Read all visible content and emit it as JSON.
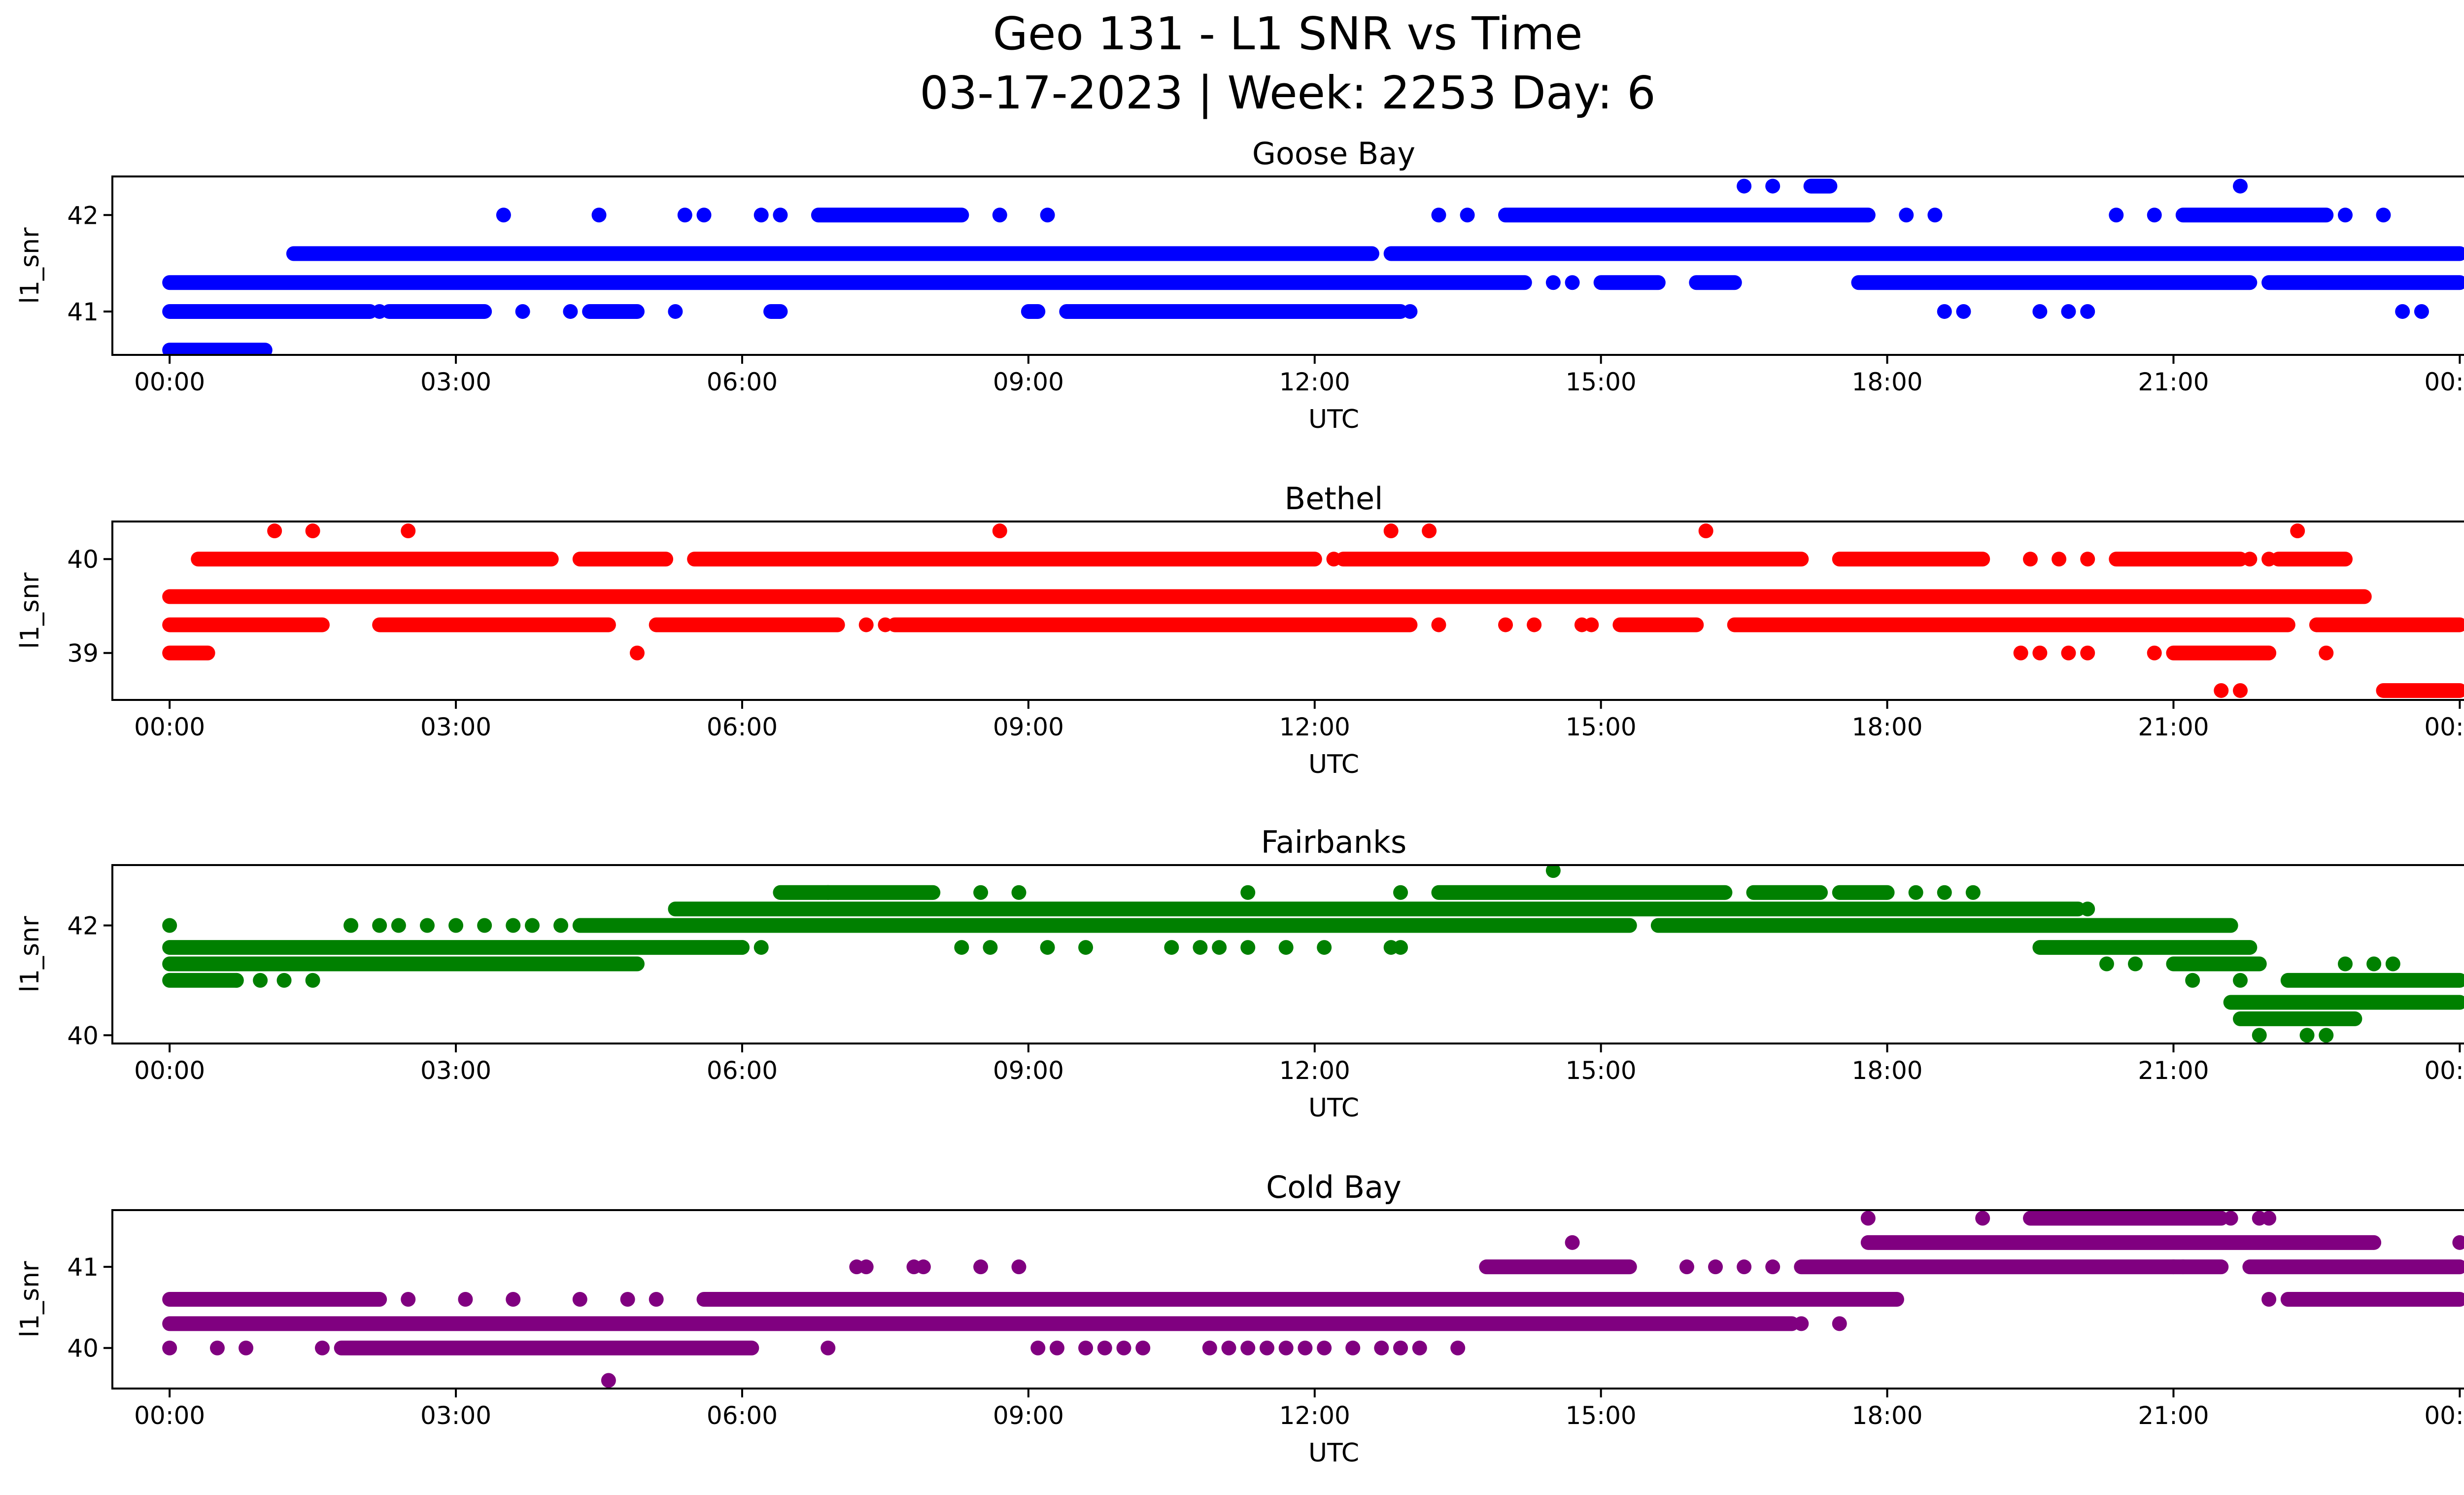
{
  "figure": {
    "title_line1": "Geo 131 - L1 SNR vs Time",
    "title_line2": "03-17-2023 | Week: 2253 Day: 6"
  },
  "chart_data": [
    {
      "type": "scatter",
      "title": "Goose Bay",
      "xlabel": "UTC",
      "ylabel": "l1_snr",
      "color": "#0000ff",
      "xlim": [
        -0.6,
        25.0
      ],
      "ylim": [
        40.55,
        42.4
      ],
      "xticks": [
        "00:00",
        "03:00",
        "06:00",
        "09:00",
        "12:00",
        "15:00",
        "18:00",
        "21:00",
        "00:00"
      ],
      "yticks": [
        41,
        42
      ],
      "bands": [
        {
          "y": 40.6,
          "segs": [
            [
              0.0,
              1.0
            ]
          ]
        },
        {
          "y": 41.0,
          "segs": [
            [
              0.0,
              2.1
            ],
            [
              2.3,
              2.6
            ],
            [
              2.6,
              3.3
            ],
            [
              4.4,
              4.9
            ],
            [
              6.3,
              6.4
            ],
            [
              9.0,
              9.1
            ],
            [
              9.4,
              12.9
            ]
          ]
        },
        {
          "y": 41.3,
          "segs": [
            [
              0.0,
              14.2
            ],
            [
              15.0,
              15.6
            ],
            [
              16.0,
              16.4
            ],
            [
              17.7,
              21.8
            ],
            [
              22.0,
              24.0
            ]
          ]
        },
        {
          "y": 41.6,
          "segs": [
            [
              1.3,
              12.6
            ],
            [
              12.8,
              24.0
            ]
          ]
        },
        {
          "y": 42.0,
          "segs": [
            [
              6.8,
              8.3
            ],
            [
              14.0,
              17.8
            ],
            [
              21.1,
              22.6
            ]
          ]
        },
        {
          "y": 42.3,
          "segs": [
            [
              17.2,
              17.4
            ]
          ]
        }
      ],
      "points": [
        [
          3.5,
          42.0
        ],
        [
          4.5,
          42.0
        ],
        [
          5.4,
          42.0
        ],
        [
          5.6,
          42.0
        ],
        [
          6.2,
          42.0
        ],
        [
          6.4,
          42.0
        ],
        [
          8.7,
          42.0
        ],
        [
          9.2,
          42.0
        ],
        [
          13.3,
          42.0
        ],
        [
          13.6,
          42.0
        ],
        [
          18.2,
          42.0
        ],
        [
          18.5,
          42.0
        ],
        [
          20.4,
          42.0
        ],
        [
          20.8,
          42.0
        ],
        [
          22.8,
          42.0
        ],
        [
          23.2,
          42.0
        ],
        [
          16.5,
          42.3
        ],
        [
          16.8,
          42.3
        ],
        [
          21.7,
          42.3
        ],
        [
          2.2,
          41.0
        ],
        [
          3.7,
          41.0
        ],
        [
          4.2,
          41.0
        ],
        [
          5.3,
          41.0
        ],
        [
          13.0,
          41.0
        ],
        [
          18.6,
          41.0
        ],
        [
          18.8,
          41.0
        ],
        [
          19.6,
          41.0
        ],
        [
          19.9,
          41.0
        ],
        [
          20.1,
          41.0
        ],
        [
          23.4,
          41.0
        ],
        [
          23.6,
          41.0
        ],
        [
          14.5,
          41.3
        ],
        [
          14.7,
          41.3
        ]
      ]
    },
    {
      "type": "scatter",
      "title": "Bethel",
      "xlabel": "UTC",
      "ylabel": "l1_snr",
      "color": "#ff0000",
      "xlim": [
        -0.6,
        25.0
      ],
      "ylim": [
        38.5,
        40.4
      ],
      "xticks": [
        "00:00",
        "03:00",
        "06:00",
        "09:00",
        "12:00",
        "15:00",
        "18:00",
        "21:00",
        "00:00"
      ],
      "yticks": [
        39,
        40
      ],
      "bands": [
        {
          "y": 38.6,
          "segs": [
            [
              23.2,
              24.0
            ]
          ]
        },
        {
          "y": 39.0,
          "segs": [
            [
              0.0,
              0.4
            ],
            [
              21.0,
              22.0
            ]
          ]
        },
        {
          "y": 39.3,
          "segs": [
            [
              0.0,
              1.6
            ],
            [
              2.2,
              4.6
            ],
            [
              5.1,
              7.0
            ],
            [
              7.6,
              13.0
            ],
            [
              15.2,
              16.0
            ],
            [
              16.4,
              22.2
            ],
            [
              22.5,
              24.0
            ]
          ]
        },
        {
          "y": 39.6,
          "segs": [
            [
              0.0,
              23.0
            ]
          ]
        },
        {
          "y": 40.0,
          "segs": [
            [
              0.3,
              4.0
            ],
            [
              4.3,
              5.2
            ],
            [
              5.5,
              12.0
            ],
            [
              12.3,
              17.1
            ],
            [
              17.5,
              19.0
            ],
            [
              20.4,
              21.7
            ],
            [
              22.1,
              22.8
            ]
          ]
        }
      ],
      "points": [
        [
          1.1,
          40.3
        ],
        [
          1.5,
          40.3
        ],
        [
          2.5,
          40.3
        ],
        [
          8.7,
          40.3
        ],
        [
          12.8,
          40.3
        ],
        [
          13.2,
          40.3
        ],
        [
          16.1,
          40.3
        ],
        [
          22.3,
          40.3
        ],
        [
          4.9,
          39.0
        ],
        [
          19.4,
          39.0
        ],
        [
          19.6,
          39.0
        ],
        [
          19.9,
          39.0
        ],
        [
          20.1,
          39.0
        ],
        [
          20.8,
          39.0
        ],
        [
          22.6,
          39.0
        ],
        [
          21.5,
          38.6
        ],
        [
          21.7,
          38.6
        ],
        [
          7.3,
          39.3
        ],
        [
          7.5,
          39.3
        ],
        [
          13.3,
          39.3
        ],
        [
          14.0,
          39.3
        ],
        [
          14.3,
          39.3
        ],
        [
          14.8,
          39.3
        ],
        [
          14.9,
          39.3
        ],
        [
          19.5,
          40.0
        ],
        [
          19.8,
          40.0
        ],
        [
          20.1,
          40.0
        ],
        [
          12.2,
          40.0
        ],
        [
          21.8,
          40.0
        ],
        [
          22.0,
          40.0
        ]
      ]
    },
    {
      "type": "scatter",
      "title": "Fairbanks",
      "xlabel": "UTC",
      "ylabel": "l1_snr",
      "color": "#008000",
      "xlim": [
        -0.6,
        25.0
      ],
      "ylim": [
        39.85,
        43.1
      ],
      "xticks": [
        "00:00",
        "03:00",
        "06:00",
        "09:00",
        "12:00",
        "15:00",
        "18:00",
        "21:00",
        "00:00"
      ],
      "yticks": [
        40,
        42
      ],
      "bands": [
        {
          "y": 40.3,
          "segs": [
            [
              21.7,
              22.9
            ]
          ]
        },
        {
          "y": 40.6,
          "segs": [
            [
              21.6,
              24.0
            ]
          ]
        },
        {
          "y": 41.0,
          "segs": [
            [
              0.0,
              0.7
            ],
            [
              22.2,
              24.0
            ]
          ]
        },
        {
          "y": 41.3,
          "segs": [
            [
              0.0,
              4.9
            ],
            [
              21.0,
              21.9
            ]
          ]
        },
        {
          "y": 41.6,
          "segs": [
            [
              0.0,
              6.0
            ],
            [
              19.6,
              21.8
            ]
          ]
        },
        {
          "y": 42.0,
          "segs": [
            [
              4.3,
              15.3
            ],
            [
              15.6,
              21.6
            ]
          ]
        },
        {
          "y": 42.3,
          "segs": [
            [
              5.3,
              20.0
            ]
          ]
        },
        {
          "y": 42.6,
          "segs": [
            [
              6.4,
              6.9
            ],
            [
              6.9,
              8.0
            ],
            [
              13.3,
              16.3
            ],
            [
              16.6,
              17.3
            ],
            [
              17.5,
              18.0
            ]
          ]
        }
      ],
      "points": [
        [
          0.0,
          42.0
        ],
        [
          0.7,
          41.0
        ],
        [
          0.95,
          41.0
        ],
        [
          1.2,
          41.0
        ],
        [
          1.5,
          41.0
        ],
        [
          1.9,
          42.0
        ],
        [
          2.2,
          42.0
        ],
        [
          2.4,
          42.0
        ],
        [
          2.7,
          42.0
        ],
        [
          3.0,
          42.0
        ],
        [
          3.3,
          42.0
        ],
        [
          3.6,
          42.0
        ],
        [
          3.8,
          42.0
        ],
        [
          4.1,
          42.0
        ],
        [
          6.0,
          41.6
        ],
        [
          6.2,
          41.6
        ],
        [
          8.5,
          42.6
        ],
        [
          8.9,
          42.6
        ],
        [
          11.3,
          42.6
        ],
        [
          12.9,
          42.6
        ],
        [
          14.5,
          43.0
        ],
        [
          18.3,
          42.6
        ],
        [
          18.6,
          42.6
        ],
        [
          18.9,
          42.6
        ],
        [
          20.1,
          42.3
        ],
        [
          8.3,
          41.6
        ],
        [
          8.6,
          41.6
        ],
        [
          9.2,
          41.6
        ],
        [
          9.6,
          41.6
        ],
        [
          10.5,
          41.6
        ],
        [
          10.8,
          41.6
        ],
        [
          11.0,
          41.6
        ],
        [
          11.3,
          41.6
        ],
        [
          11.7,
          41.6
        ],
        [
          12.1,
          41.6
        ],
        [
          12.8,
          41.6
        ],
        [
          12.9,
          41.6
        ],
        [
          21.9,
          40.0
        ],
        [
          22.6,
          40.0
        ],
        [
          22.8,
          41.3
        ],
        [
          23.1,
          41.3
        ],
        [
          23.3,
          41.3
        ],
        [
          22.4,
          40.0
        ],
        [
          21.2,
          41.0
        ],
        [
          21.7,
          41.0
        ],
        [
          20.3,
          41.3
        ],
        [
          20.6,
          41.3
        ]
      ]
    },
    {
      "type": "scatter",
      "title": "Cold Bay",
      "xlabel": "UTC",
      "ylabel": "l1_snr",
      "color": "#800080",
      "xlim": [
        -0.6,
        25.0
      ],
      "ylim": [
        39.5,
        41.7
      ],
      "xticks": [
        "00:00",
        "03:00",
        "06:00",
        "09:00",
        "12:00",
        "15:00",
        "18:00",
        "21:00",
        "00:00"
      ],
      "yticks": [
        40,
        41
      ],
      "bands": [
        {
          "y": 40.0,
          "segs": [
            [
              1.8,
              6.1
            ]
          ]
        },
        {
          "y": 40.3,
          "segs": [
            [
              0.0,
              17.0
            ]
          ]
        },
        {
          "y": 40.6,
          "segs": [
            [
              0.0,
              2.2
            ],
            [
              5.6,
              18.1
            ],
            [
              22.2,
              23.6
            ],
            [
              23.4,
              24.0
            ]
          ]
        },
        {
          "y": 41.0,
          "segs": [
            [
              13.8,
              15.3
            ],
            [
              17.1,
              21.5
            ],
            [
              21.8,
              24.0
            ]
          ]
        },
        {
          "y": 41.3,
          "segs": [
            [
              17.8,
              23.1
            ]
          ]
        },
        {
          "y": 41.6,
          "segs": [
            [
              19.5,
              21.5
            ]
          ]
        }
      ],
      "points": [
        [
          0.0,
          40.0
        ],
        [
          0.5,
          40.0
        ],
        [
          0.8,
          40.0
        ],
        [
          1.6,
          40.0
        ],
        [
          2.5,
          40.6
        ],
        [
          3.1,
          40.6
        ],
        [
          3.6,
          40.6
        ],
        [
          4.3,
          40.6
        ],
        [
          4.8,
          40.6
        ],
        [
          5.1,
          40.6
        ],
        [
          4.6,
          39.6
        ],
        [
          6.9,
          40.0
        ],
        [
          7.2,
          41.0
        ],
        [
          7.3,
          41.0
        ],
        [
          7.8,
          41.0
        ],
        [
          7.9,
          41.0
        ],
        [
          8.5,
          41.0
        ],
        [
          8.9,
          41.0
        ],
        [
          9.1,
          40.0
        ],
        [
          9.3,
          40.0
        ],
        [
          9.6,
          40.0
        ],
        [
          9.8,
          40.0
        ],
        [
          10.0,
          40.0
        ],
        [
          10.2,
          40.0
        ],
        [
          10.9,
          40.0
        ],
        [
          11.1,
          40.0
        ],
        [
          11.3,
          40.0
        ],
        [
          11.5,
          40.0
        ],
        [
          11.7,
          40.0
        ],
        [
          11.9,
          40.0
        ],
        [
          12.1,
          40.0
        ],
        [
          12.4,
          40.0
        ],
        [
          12.7,
          40.0
        ],
        [
          12.9,
          40.0
        ],
        [
          13.1,
          40.0
        ],
        [
          13.5,
          40.0
        ],
        [
          14.7,
          41.3
        ],
        [
          15.9,
          41.0
        ],
        [
          16.2,
          41.0
        ],
        [
          16.5,
          41.0
        ],
        [
          16.8,
          41.0
        ],
        [
          17.1,
          40.3
        ],
        [
          17.5,
          40.3
        ],
        [
          17.8,
          41.6
        ],
        [
          19.0,
          41.6
        ],
        [
          21.9,
          41.6
        ],
        [
          22.0,
          41.6
        ],
        [
          21.6,
          41.6
        ],
        [
          21.0,
          41.0
        ],
        [
          21.1,
          41.0
        ],
        [
          22.0,
          40.6
        ],
        [
          22.3,
          40.6
        ],
        [
          24.0,
          41.3
        ]
      ]
    }
  ]
}
